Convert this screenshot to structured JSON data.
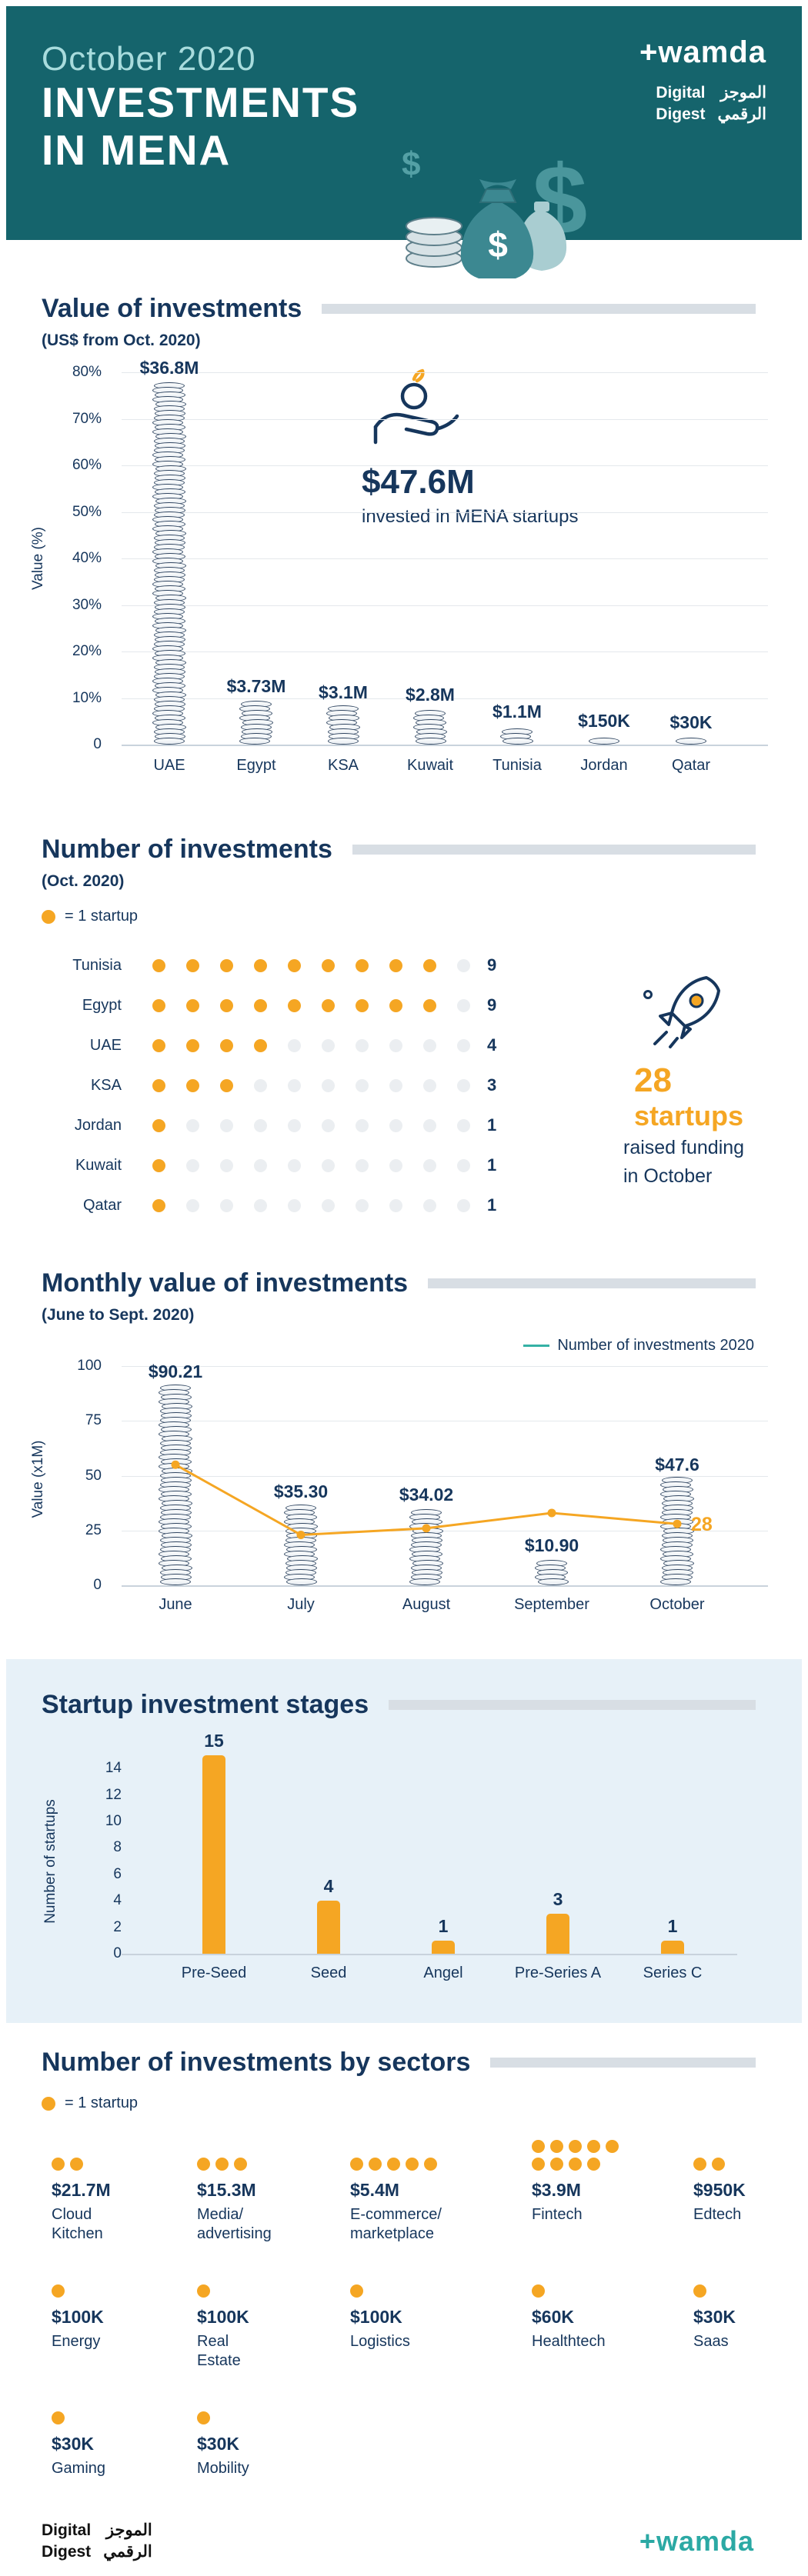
{
  "colors": {
    "header_teal": "#15646C",
    "teal_light": "#A8DCDD",
    "navy": "#16365C",
    "orange": "#F5A623",
    "legend_line_teal": "#35B1A5",
    "title_bar_grey": "#D8DEE4",
    "stages_band_blue": "#E7F1F8",
    "wamda_footer_teal": "#2BA9A4"
  },
  "header": {
    "date": "October 2020",
    "title_line1": "INVESTMENTS",
    "title_line2": "IN MENA",
    "logo": "+wamda",
    "digest": {
      "en1": "Digital",
      "en2": "Digest",
      "ar1": "الموجز",
      "ar2": "الرقمي"
    }
  },
  "value_section": {
    "title": "Value of investments",
    "subtitle": "(US$ from Oct. 2020)",
    "callout_amount": "$47.6M",
    "callout_text": "invested in MENA startups"
  },
  "count_section": {
    "title": "Number of investments",
    "subtitle": "(Oct. 2020)",
    "legend": "= 1 startup",
    "callout_number": "28",
    "callout_word": "startups",
    "callout_line1": "raised funding",
    "callout_line2": "in October"
  },
  "monthly_section": {
    "title": "Monthly value of investments",
    "subtitle": "(June to Sept. 2020)",
    "legend": "Number of investments 2020"
  },
  "stages_section": {
    "title": "Startup investment stages"
  },
  "sectors_section": {
    "title": "Number of investments by sectors",
    "legend": "= 1 startup"
  },
  "footer": {
    "digest": {
      "en1": "Digital",
      "en2": "Digest",
      "ar1": "الموجز",
      "ar2": "الرقمي"
    },
    "logo": "+wamda"
  },
  "chart_data": [
    {
      "id": "value-of-investments",
      "type": "bar",
      "style": "coin-stacks",
      "title": "Value of investments",
      "subtitle": "(US$ from Oct. 2020)",
      "ylabel": "Value (%)",
      "ylim": [
        0,
        80
      ],
      "yticks": [
        "80%",
        "70%",
        "60%",
        "50%",
        "40%",
        "30%",
        "20%",
        "10%",
        "0"
      ],
      "grid": true,
      "categories": [
        "UAE",
        "Egypt",
        "KSA",
        "Kuwait",
        "Tunisia",
        "Jordan",
        "Qatar"
      ],
      "values_usd": [
        36800000,
        3730000,
        3100000,
        2800000,
        1100000,
        150000,
        30000
      ],
      "labels": [
        "$36.8M",
        "$3.73M",
        "$3.1M",
        "$2.8M",
        "$1.1M",
        "$150K",
        "$30K"
      ],
      "total_label": "$47.6M"
    },
    {
      "id": "number-of-investments",
      "type": "pictogram",
      "title": "Number of investments",
      "subtitle": "(Oct. 2020)",
      "unit_legend": "= 1 startup",
      "max_per_row": 10,
      "categories": [
        "Tunisia",
        "Egypt",
        "UAE",
        "KSA",
        "Jordan",
        "Kuwait",
        "Qatar"
      ],
      "values": [
        9,
        9,
        4,
        3,
        1,
        1,
        1
      ],
      "total": 28
    },
    {
      "id": "monthly-value",
      "type": "bar+line",
      "title": "Monthly value of investments",
      "subtitle": "(June to Sept. 2020)",
      "ylabel": "Value (x1M)",
      "ylim": [
        0,
        100
      ],
      "yticks": [
        100,
        75,
        50,
        25,
        0
      ],
      "grid": true,
      "legend_position": "top-right",
      "categories": [
        "June",
        "July",
        "August",
        "September",
        "October"
      ],
      "series": [
        {
          "name": "Value (x1M)",
          "type": "bar",
          "style": "coin-stacks",
          "values": [
            90.21,
            35.3,
            34.02,
            10.9,
            47.6
          ],
          "labels": [
            "$90.21",
            "$35.30",
            "$34.02",
            "$10.90",
            "$47.6"
          ]
        },
        {
          "name": "Number of investments 2020",
          "type": "line",
          "color": "#F5A623",
          "legend_swatch_color": "#35B1A5",
          "values": [
            55,
            23,
            26,
            33,
            28
          ],
          "point_labels": [
            "",
            "",
            "",
            "",
            "28"
          ]
        }
      ]
    },
    {
      "id": "startup-investment-stages",
      "type": "bar",
      "title": "Startup investment stages",
      "ylabel": "Number of startups",
      "ylim": [
        0,
        15
      ],
      "yticks": [
        14,
        12,
        10,
        8,
        6,
        4,
        2,
        0
      ],
      "grid": false,
      "bar_color": "#F5A623",
      "categories": [
        "Pre-Seed",
        "Seed",
        "Angel",
        "Pre-Series A",
        "Series C"
      ],
      "values": [
        15,
        4,
        1,
        3,
        1
      ]
    },
    {
      "id": "investments-by-sector",
      "type": "pictogram-grid",
      "title": "Number of investments by sectors",
      "unit_legend": "= 1 startup",
      "items": [
        {
          "name_lines": [
            "Cloud",
            "Kitchen"
          ],
          "value": "$21.7M",
          "startups": 2
        },
        {
          "name_lines": [
            "Media/",
            "advertising"
          ],
          "value": "$15.3M",
          "startups": 3
        },
        {
          "name_lines": [
            "E-commerce/",
            "marketplace"
          ],
          "value": "$5.4M",
          "startups": 5
        },
        {
          "name_lines": [
            "Fintech"
          ],
          "value": "$3.9M",
          "startups": 9
        },
        {
          "name_lines": [
            "Edtech"
          ],
          "value": "$950K",
          "startups": 2
        },
        {
          "name_lines": [
            "Energy"
          ],
          "value": "$100K",
          "startups": 1
        },
        {
          "name_lines": [
            "Real",
            "Estate"
          ],
          "value": "$100K",
          "startups": 1
        },
        {
          "name_lines": [
            "Logistics"
          ],
          "value": "$100K",
          "startups": 1
        },
        {
          "name_lines": [
            "Healthtech"
          ],
          "value": "$60K",
          "startups": 1
        },
        {
          "name_lines": [
            "Saas"
          ],
          "value": "$30K",
          "startups": 1
        },
        {
          "name_lines": [
            "Gaming"
          ],
          "value": "$30K",
          "startups": 1
        },
        {
          "name_lines": [
            "Mobility"
          ],
          "value": "$30K",
          "startups": 1
        }
      ]
    }
  ]
}
